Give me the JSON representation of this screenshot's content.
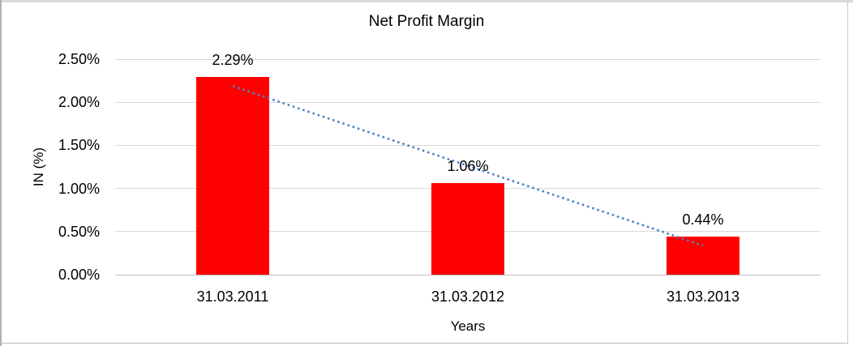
{
  "frame": {
    "top_strip_color": "#d9d9d9",
    "side_border_color": "#b0b0b0",
    "bottom_border_color": "#bdbdbd",
    "right_border_color": "#c8c8c8"
  },
  "chart_data": {
    "type": "bar",
    "title": "Net Profit Margin",
    "xlabel": "Years",
    "ylabel": "IN (%)",
    "categories": [
      "31.03.2011",
      "31.03.2012",
      "31.03.2013"
    ],
    "values": [
      2.29,
      1.06,
      0.44
    ],
    "value_labels": [
      "2.29%",
      "1.06%",
      "0.44%"
    ],
    "ylim": [
      0,
      2.5
    ],
    "ytick_step": 0.5,
    "ytick_labels": [
      "0.00%",
      "0.50%",
      "1.00%",
      "1.50%",
      "2.00%",
      "2.50%"
    ],
    "grid": true,
    "legend": "none",
    "trendline": {
      "type": "linear",
      "style": "dotted"
    },
    "colors": {
      "bar": "#ff0000",
      "trendline": "#4d82c4",
      "gridline": "#d9d9d9",
      "axis_line": "#bfbfbf",
      "text": "#000000"
    }
  }
}
